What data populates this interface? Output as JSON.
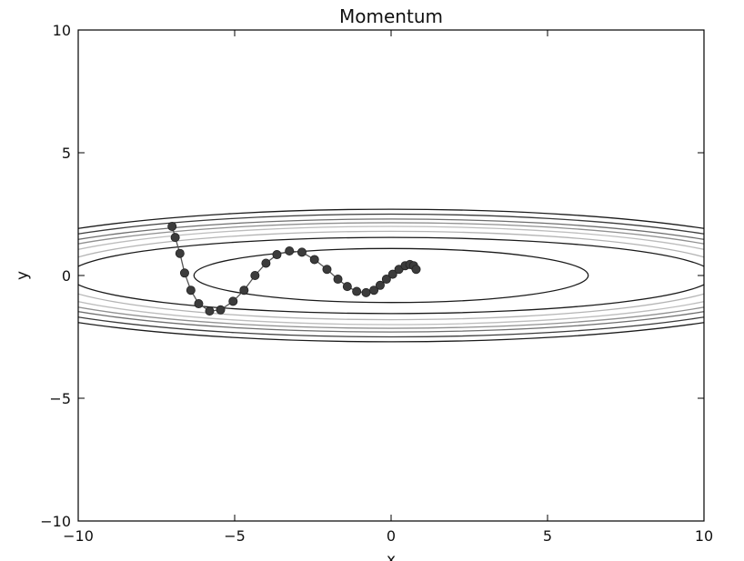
{
  "chart_data": {
    "type": "line",
    "title": "Momentum",
    "xlabel": "x",
    "ylabel": "y",
    "xlim": [
      -10,
      10
    ],
    "ylim": [
      -10,
      10
    ],
    "xticks": [
      -10,
      -5,
      0,
      5,
      10
    ],
    "xtick_labels": [
      "−10",
      "−5",
      "0",
      "5",
      "10"
    ],
    "yticks": [
      -10,
      -5,
      0,
      5,
      10
    ],
    "ytick_labels": [
      "−10",
      "−5",
      "0",
      "5",
      "10"
    ],
    "grid": false,
    "background": "contour",
    "contour_levels": [
      {
        "semi_x": 6.3,
        "semi_y": 1.1,
        "color": "#1a1a1a"
      },
      {
        "semi_x": 10.3,
        "semi_y": 1.55,
        "color": "#1a1a1a"
      },
      {
        "semi_x": 11.0,
        "semi_y": 1.8,
        "color": "#b4b4b4"
      },
      {
        "semi_x": 11.8,
        "semi_y": 2.0,
        "color": "#bdbdbd"
      },
      {
        "semi_x": 12.5,
        "semi_y": 2.15,
        "color": "#909090"
      },
      {
        "semi_x": 13.0,
        "semi_y": 2.3,
        "color": "#6e6e6e"
      },
      {
        "semi_x": 13.6,
        "semi_y": 2.5,
        "color": "#3a3a3a"
      },
      {
        "semi_x": 14.2,
        "semi_y": 2.7,
        "color": "#1a1a1a"
      }
    ],
    "series": [
      {
        "marker": "circle",
        "color": "#3c3c3c",
        "x": [
          -7.0,
          -6.9,
          -6.75,
          -6.6,
          -6.4,
          -6.15,
          -5.8,
          -5.45,
          -5.05,
          -4.7,
          -4.35,
          -4.0,
          -3.65,
          -3.25,
          -2.85,
          -2.45,
          -2.05,
          -1.7,
          -1.4,
          -1.1,
          -0.8,
          -0.55,
          -0.35,
          -0.15,
          0.05,
          0.25,
          0.45,
          0.6,
          0.72,
          0.8
        ],
        "y": [
          2.0,
          1.55,
          0.9,
          0.1,
          -0.6,
          -1.15,
          -1.45,
          -1.4,
          -1.05,
          -0.6,
          0.0,
          0.5,
          0.85,
          1.0,
          0.95,
          0.65,
          0.25,
          -0.15,
          -0.45,
          -0.65,
          -0.7,
          -0.6,
          -0.4,
          -0.15,
          0.05,
          0.25,
          0.4,
          0.45,
          0.4,
          0.25
        ]
      }
    ]
  }
}
